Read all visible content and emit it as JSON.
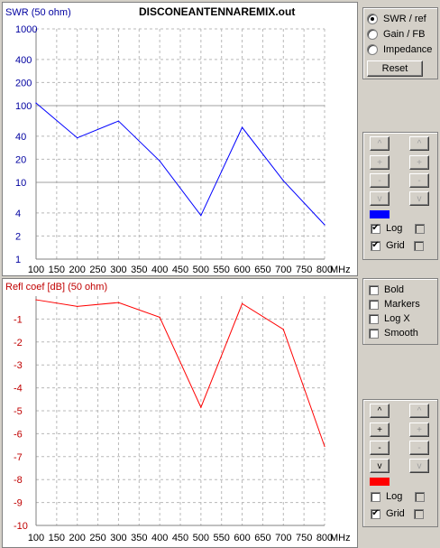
{
  "title": "DISCONEANTENNAREMIX.out",
  "top_ylabel": "SWR (50 ohm)",
  "bot_ylabel": "Refl coef [dB] (50 ohm)",
  "x_unit": "MHz",
  "view_options": [
    {
      "label": "SWR / ref",
      "selected": true
    },
    {
      "label": "Gain / FB",
      "selected": false
    },
    {
      "label": "Impedance",
      "selected": false
    }
  ],
  "reset_label": "Reset",
  "top_controls": {
    "up": "^",
    "plus": "+",
    "minus": "-",
    "down": "v",
    "color": "#0000ff",
    "log_label": "Log",
    "log_checked": true,
    "grid_label": "Grid",
    "grid_checked": true
  },
  "bot_controls": {
    "up": "^",
    "plus": "+",
    "minus": "-",
    "down": "v",
    "color": "#ff0000",
    "log_label": "Log",
    "log_checked": false,
    "grid_label": "Grid",
    "grid_checked": true
  },
  "plot_options": [
    {
      "label": "Bold",
      "checked": false
    },
    {
      "label": "Markers",
      "checked": false
    },
    {
      "label": "Log X",
      "checked": false
    },
    {
      "label": "Smooth",
      "checked": false
    }
  ],
  "chart_data": [
    {
      "type": "line",
      "title": "DISCONEANTENNAREMIX.out",
      "ylabel": "SWR (50 ohm)",
      "xlabel": "MHz",
      "yscale": "log",
      "ylim": [
        1,
        1000
      ],
      "xlim": [
        100,
        800
      ],
      "grid": true,
      "color": "#0000ff",
      "x_ticks": [
        "100",
        "150",
        "200",
        "250",
        "300",
        "350",
        "400",
        "450",
        "500",
        "550",
        "600",
        "650",
        "700",
        "750",
        "800"
      ],
      "y_ticks": [
        "1",
        "2",
        "4",
        "10",
        "20",
        "40",
        "100",
        "200",
        "400",
        "1000"
      ],
      "x": [
        100,
        200,
        300,
        400,
        500,
        600,
        700,
        800
      ],
      "y": [
        108,
        38,
        63,
        19,
        3.7,
        52,
        10.5,
        2.8
      ]
    },
    {
      "type": "line",
      "ylabel": "Refl coef [dB] (50 ohm)",
      "xlabel": "MHz",
      "ylim": [
        -10,
        0
      ],
      "xlim": [
        100,
        800
      ],
      "grid": true,
      "color": "#ff0000",
      "x_ticks": [
        "100",
        "150",
        "200",
        "250",
        "300",
        "350",
        "400",
        "450",
        "500",
        "550",
        "600",
        "650",
        "700",
        "750",
        "800"
      ],
      "y_ticks": [
        "-1",
        "-2",
        "-3",
        "-4",
        "-5",
        "-6",
        "-7",
        "-8",
        "-9",
        "-10"
      ],
      "x": [
        100,
        200,
        300,
        400,
        500,
        600,
        700,
        800
      ],
      "y": [
        -0.16,
        -0.45,
        -0.28,
        -0.92,
        -4.85,
        -0.33,
        -1.45,
        -6.55
      ]
    }
  ]
}
